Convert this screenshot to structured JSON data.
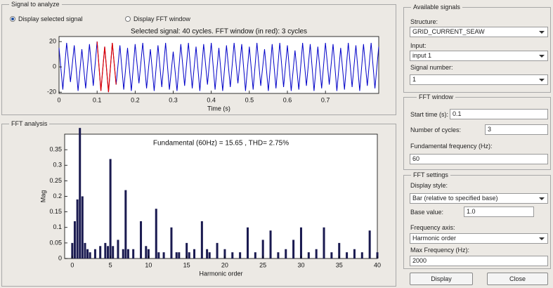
{
  "signal_panel": {
    "title": "Signal to analyze",
    "option_selected": "Display selected signal",
    "option_fft": "Display FFT window",
    "chart": {
      "type": "line",
      "title": "Selected signal: 40 cycles. FFT window (in red): 3 cycles",
      "xlabel": "Time (s)",
      "color": "#0000c8",
      "highlight_color": "#e00000",
      "xlim": [
        0,
        0.84
      ],
      "xticks": [
        0,
        0.1,
        0.2,
        0.3,
        0.4,
        0.5,
        0.6,
        0.7
      ],
      "ylim": [
        -21,
        24
      ],
      "yticks": [
        20,
        0,
        -20
      ],
      "x": [
        0,
        0.01,
        0.02,
        0.03,
        0.04,
        0.05,
        0.06,
        0.07,
        0.08,
        0.09,
        0.1,
        0.11,
        0.12,
        0.13,
        0.14,
        0.15,
        0.16,
        0.17,
        0.18,
        0.19,
        0.2,
        0.21,
        0.22,
        0.23,
        0.24,
        0.25,
        0.26,
        0.27,
        0.28,
        0.29,
        0.3,
        0.31,
        0.32,
        0.33,
        0.34,
        0.35,
        0.36,
        0.37,
        0.38,
        0.39,
        0.4,
        0.41,
        0.42,
        0.43,
        0.44,
        0.45,
        0.46,
        0.47,
        0.48,
        0.49,
        0.5,
        0.51,
        0.52,
        0.53,
        0.54,
        0.55,
        0.56,
        0.57,
        0.58,
        0.59,
        0.6,
        0.61,
        0.62,
        0.63,
        0.64,
        0.65,
        0.66,
        0.67,
        0.68,
        0.69,
        0.7,
        0.71,
        0.72,
        0.73,
        0.74,
        0.75,
        0.76,
        0.77,
        0.78,
        0.79,
        0.8,
        0.81,
        0.82,
        0.83,
        0.84
      ],
      "values": [
        15,
        -18,
        19,
        -12,
        17,
        -19,
        14,
        -17,
        18,
        -15,
        20,
        -19,
        16,
        -20,
        19,
        -14,
        17,
        -18,
        15,
        -19,
        18,
        -13,
        19,
        -17,
        14,
        -19,
        17,
        -16,
        19,
        -18,
        12,
        -19,
        18,
        -15,
        19,
        -17,
        16,
        -19,
        18,
        -14,
        19,
        -18,
        15,
        -19,
        17,
        -16,
        19,
        -13,
        18,
        -19,
        16,
        -18,
        19,
        -15,
        14,
        -19,
        18,
        -17,
        19,
        -16,
        17,
        -19,
        13,
        -18,
        19,
        -15,
        18,
        -19,
        16,
        -17,
        19,
        -14,
        18,
        -19,
        15,
        -18,
        19,
        -16,
        17,
        -19,
        18,
        -15,
        19,
        -17,
        16
      ]
    }
  },
  "fft_panel": {
    "title": "FFT analysis",
    "chart": {
      "type": "bar",
      "title": "Fundamental (60Hz) = 15.65 , THD= 2.75%",
      "xlabel": "Harmonic order",
      "ylabel": "Mag",
      "color": "#1a1a50",
      "xlim": [
        -1,
        40
      ],
      "xticks": [
        0,
        5,
        10,
        15,
        20,
        25,
        30,
        35,
        40
      ],
      "ylim": [
        0,
        0.4
      ],
      "yticks": [
        0,
        0.05,
        0.1,
        0.15,
        0.2,
        0.25,
        0.3,
        0.35
      ],
      "x": [
        0,
        0.33,
        0.67,
        1,
        1.33,
        1.67,
        2,
        2.33,
        3,
        3.67,
        4.33,
        4.67,
        5,
        5.33,
        6,
        6.67,
        7,
        7.33,
        8,
        9,
        9.67,
        10,
        11,
        11.33,
        12,
        13,
        13.67,
        14,
        15,
        15.33,
        16,
        17,
        17.67,
        18,
        19,
        20,
        21,
        22,
        23,
        24,
        25,
        26,
        27,
        28,
        29,
        30,
        31,
        32,
        33,
        34,
        35,
        36,
        37,
        38,
        39,
        40
      ],
      "values": [
        0.05,
        0.12,
        0.19,
        0.42,
        0.2,
        0.05,
        0.03,
        0.02,
        0.03,
        0.04,
        0.05,
        0.04,
        0.32,
        0.04,
        0.06,
        0.03,
        0.22,
        0.03,
        0.03,
        0.12,
        0.04,
        0.03,
        0.16,
        0.02,
        0.02,
        0.1,
        0.02,
        0.02,
        0.05,
        0.02,
        0.03,
        0.12,
        0.03,
        0.02,
        0.05,
        0.03,
        0.02,
        0.02,
        0.1,
        0.02,
        0.06,
        0.09,
        0.02,
        0.03,
        0.06,
        0.1,
        0.02,
        0.03,
        0.1,
        0.02,
        0.05,
        0.02,
        0.03,
        0.02,
        0.09,
        0.02
      ]
    }
  },
  "available_signals": {
    "title": "Available signals",
    "structure_label": "Structure:",
    "structure": "GRID_CURRENT_SEAW",
    "input_label": "Input:",
    "input": "input 1",
    "signal_number_label": "Signal number:",
    "signal_number": 1
  },
  "fft_window": {
    "title": "FFT window",
    "start_time_label": "Start time (s):",
    "start_time": 0.1,
    "cycles_label": "Number of cycles:",
    "cycles": 3,
    "fundamental_label": "Fundamental frequency (Hz):",
    "fundamental": 60
  },
  "fft_settings": {
    "title": "FFT settings",
    "display_style_label": "Display style:",
    "display_style": "Bar (relative to specified base)",
    "base_value_label": "Base value:",
    "base_value": "1.0",
    "frequency_axis_label": "Frequency axis:",
    "frequency_axis": "Harmonic order",
    "max_frequency_label": "Max Frequency (Hz):",
    "max_frequency": 2000
  },
  "buttons": [
    "Display",
    "Close"
  ]
}
